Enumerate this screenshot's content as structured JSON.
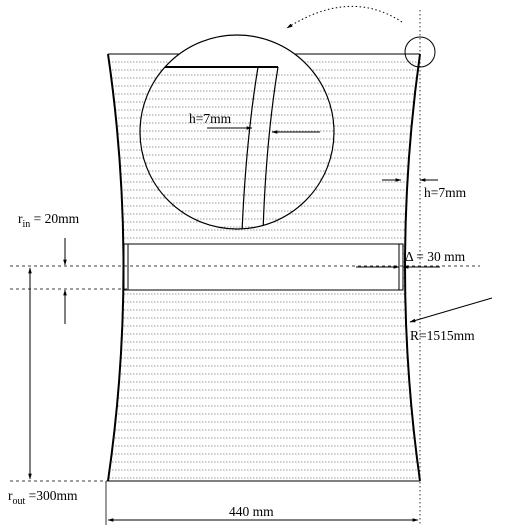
{
  "labels": {
    "h_detail_value": "h=7mm",
    "h_side_value": "h=7mm",
    "r_in_symbol": "r",
    "r_in_subscript": "in",
    "r_in_value": " = 20mm",
    "delta_value": "Δ = 30 mm",
    "R_value": "R=1515mm",
    "r_out_symbol": "r",
    "r_out_subscript": "out",
    "r_out_value": " =300mm",
    "width_value": "440 mm"
  },
  "colors": {
    "line": "#000000",
    "hatch": "#777777",
    "background": "#ffffff"
  }
}
